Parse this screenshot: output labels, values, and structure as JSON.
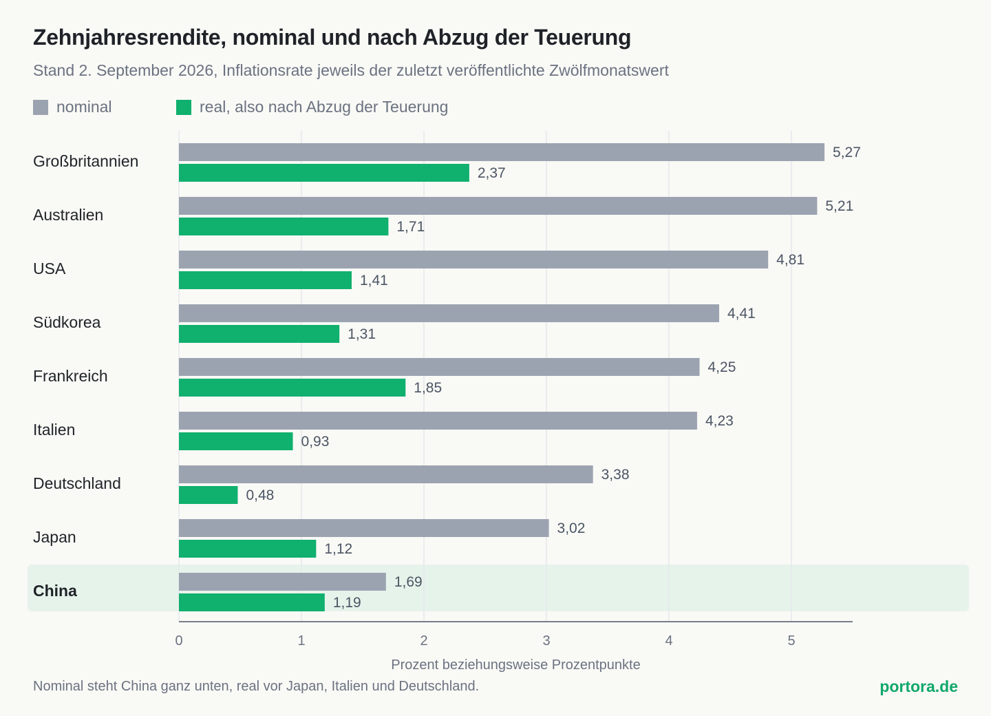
{
  "header": {
    "title": "Zehnjahresrendite, nominal und nach Abzug der Teuerung",
    "subtitle": "Stand 2. September 2026, Inflationsrate jeweils der zuletzt veröffentlichte Zwölfmonatswert"
  },
  "legend": {
    "items": [
      {
        "label": "nominal",
        "color": "#9ca3b0"
      },
      {
        "label": "real, also nach Abzug der Teuerung",
        "color": "#10b06e"
      }
    ]
  },
  "chart_data": {
    "type": "bar",
    "orientation": "horizontal",
    "categories": [
      "Großbritannien",
      "Australien",
      "USA",
      "Südkorea",
      "Frankreich",
      "Italien",
      "Deutschland",
      "Japan",
      "China"
    ],
    "highlight_category": "China",
    "series": [
      {
        "name": "nominal",
        "color": "#9ca3b0",
        "values": [
          5.27,
          5.21,
          4.81,
          4.41,
          4.25,
          4.23,
          3.38,
          3.02,
          1.69
        ],
        "value_labels": [
          "5,27",
          "5,21",
          "4,81",
          "4,41",
          "4,25",
          "4,23",
          "3,38",
          "3,02",
          "1,69"
        ]
      },
      {
        "name": "real, also nach Abzug der Teuerung",
        "color": "#10b06e",
        "values": [
          2.37,
          1.71,
          1.41,
          1.31,
          1.85,
          0.93,
          0.48,
          1.12,
          1.19
        ],
        "value_labels": [
          "2,37",
          "1,71",
          "1,41",
          "1,31",
          "1,85",
          "0,93",
          "0,48",
          "1,12",
          "1,19"
        ]
      }
    ],
    "xlim": [
      0,
      5.5
    ],
    "xticks": [
      0,
      1,
      2,
      3,
      4,
      5
    ],
    "xtick_labels": [
      "0",
      "1",
      "2",
      "3",
      "4",
      "5"
    ],
    "xlabel": "Prozent beziehungsweise Prozentpunkte",
    "grid": "vertical",
    "highlight_color": "#e6f3eb"
  },
  "footer": {
    "note": "Nominal steht China ganz unten, real vor Japan, Italien und Deutschland.",
    "brand": "portora.de"
  }
}
